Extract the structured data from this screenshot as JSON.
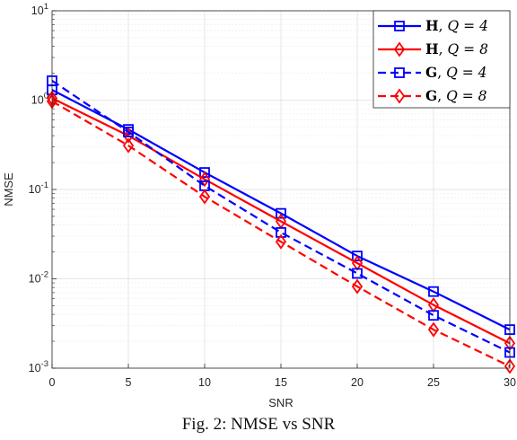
{
  "caption": "Fig. 2: NMSE vs SNR",
  "chart_data": {
    "type": "line",
    "xlabel": "SNR",
    "ylabel": "NMSE",
    "yscale": "log",
    "xlim": [
      0,
      30
    ],
    "ylim": [
      0.001,
      10
    ],
    "xticks": [
      0,
      5,
      10,
      15,
      20,
      25,
      30
    ],
    "yticks": [
      {
        "base": "10",
        "exp": "1",
        "value": 10
      },
      {
        "base": "10",
        "exp": "0",
        "value": 1
      },
      {
        "base": "10",
        "exp": "-1",
        "value": 0.1
      },
      {
        "base": "10",
        "exp": "-2",
        "value": 0.01
      },
      {
        "base": "10",
        "exp": "-3",
        "value": 0.001
      }
    ],
    "grid": true,
    "minor_grid": true,
    "legend_position": "top-right",
    "x": [
      0,
      5,
      10,
      15,
      20,
      25,
      30
    ],
    "series": [
      {
        "sym": "H",
        "q": "Q = 4",
        "color": "#0000ff",
        "dash": "solid",
        "marker": "square",
        "values": [
          1.3,
          0.47,
          0.155,
          0.054,
          0.018,
          0.0072,
          0.0027
        ]
      },
      {
        "sym": "H",
        "q": "Q = 8",
        "color": "#ff0000",
        "dash": "solid",
        "marker": "diamond",
        "values": [
          1.05,
          0.4,
          0.13,
          0.044,
          0.015,
          0.0051,
          0.0019
        ]
      },
      {
        "sym": "G",
        "q": "Q = 4",
        "color": "#0000ff",
        "dash": "dashed",
        "marker": "square",
        "values": [
          1.65,
          0.44,
          0.11,
          0.033,
          0.0115,
          0.0039,
          0.0015
        ]
      },
      {
        "sym": "G",
        "q": "Q = 8",
        "color": "#ff0000",
        "dash": "dashed",
        "marker": "diamond",
        "values": [
          0.97,
          0.31,
          0.083,
          0.026,
          0.0082,
          0.0027,
          0.00105
        ]
      }
    ]
  }
}
